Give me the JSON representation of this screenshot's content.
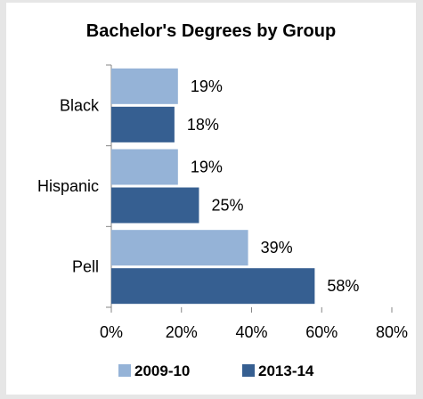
{
  "chart_data": {
    "type": "bar",
    "orientation": "horizontal",
    "title": "Bachelor's Degrees by Group",
    "categories": [
      "Black",
      "Hispanic",
      "Pell"
    ],
    "series": [
      {
        "name": "2009-10",
        "values": [
          19,
          19,
          39
        ],
        "labels": [
          "19%",
          "19%",
          "39%"
        ],
        "color": "#95b3d7"
      },
      {
        "name": "2013-14",
        "values": [
          18,
          25,
          58
        ],
        "labels": [
          "18%",
          "25%",
          "58%"
        ],
        "color": "#365f91"
      }
    ],
    "xlim": [
      0,
      80
    ],
    "xticks": [
      0,
      20,
      40,
      60,
      80
    ],
    "xtick_labels": [
      "0%",
      "20%",
      "40%",
      "60%",
      "80%"
    ],
    "grid": false,
    "legend": "bottom"
  }
}
